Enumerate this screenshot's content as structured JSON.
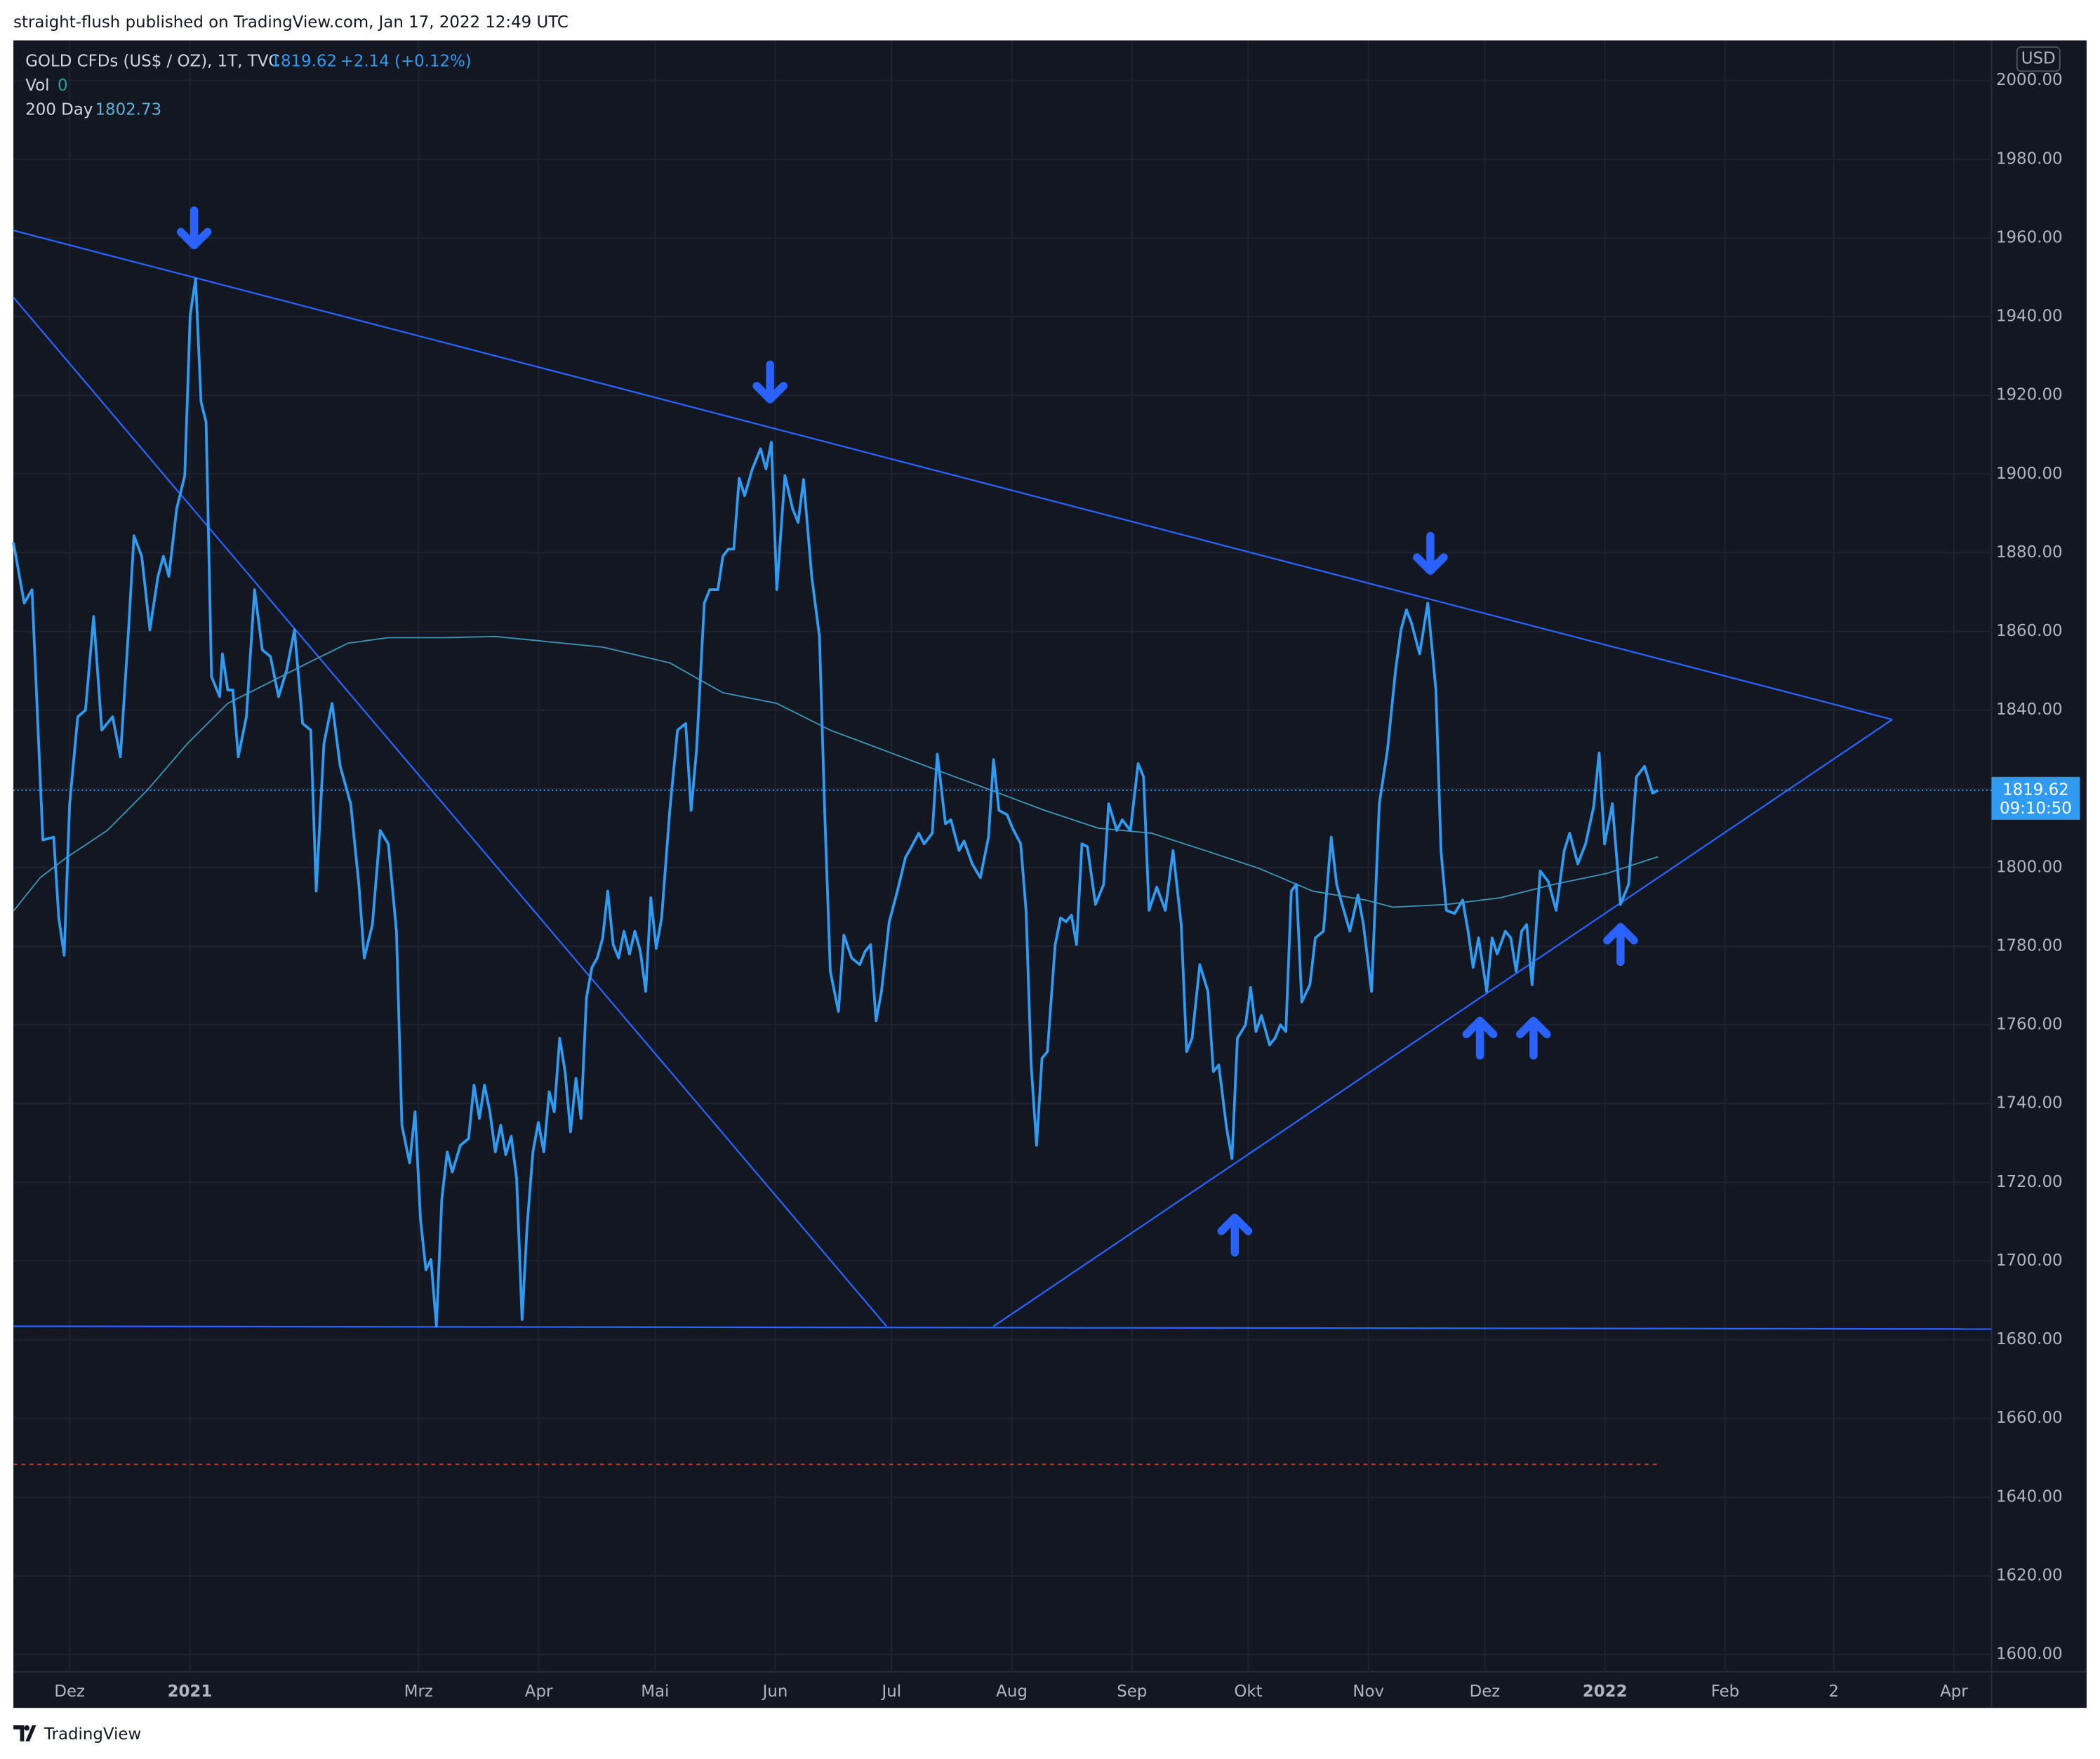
{
  "header": "straight-flush published on TradingView.com, Jan 17, 2022 12:49 UTC",
  "brand": "TradingView",
  "currency": "USD",
  "change": "+2.14 (+0.12%)",
  "volume": {
    "label": "Vol",
    "value": 0
  },
  "price_time": "09:10:50",
  "chart_data": {
    "type": "line",
    "grid": true,
    "xlim": [
      -14.5,
      495.7
    ],
    "ylim": [
      1595.6,
      2010.2
    ],
    "xticks": [
      {
        "value": 0,
        "label": "Dez"
      },
      {
        "value": 31,
        "label": "2021",
        "bold": true
      },
      {
        "value": 90,
        "label": "Mrz"
      },
      {
        "value": 121,
        "label": "Apr"
      },
      {
        "value": 151,
        "label": "Mai"
      },
      {
        "value": 182,
        "label": "Jun"
      },
      {
        "value": 212,
        "label": "Jul"
      },
      {
        "value": 243,
        "label": "Aug"
      },
      {
        "value": 274,
        "label": "Sep"
      },
      {
        "value": 304,
        "label": "Okt"
      },
      {
        "value": 335,
        "label": "Nov"
      },
      {
        "value": 365,
        "label": "Dez"
      },
      {
        "value": 396,
        "label": "2022",
        "bold": true
      },
      {
        "value": 427,
        "label": "Feb"
      },
      {
        "value": 455,
        "label": "2"
      },
      {
        "value": 486,
        "label": "Apr"
      }
    ],
    "yticks": [
      {
        "value": 1600,
        "label": "1600.00"
      },
      {
        "value": 1620,
        "label": "1620.00"
      },
      {
        "value": 1640,
        "label": "1640.00"
      },
      {
        "value": 1660,
        "label": "1660.00"
      },
      {
        "value": 1680,
        "label": "1680.00"
      },
      {
        "value": 1700,
        "label": "1700.00"
      },
      {
        "value": 1720,
        "label": "1720.00"
      },
      {
        "value": 1740,
        "label": "1740.00"
      },
      {
        "value": 1760,
        "label": "1760.00"
      },
      {
        "value": 1780,
        "label": "1780.00"
      },
      {
        "value": 1800,
        "label": "1800.00"
      },
      {
        "value": 1820,
        "label": "1820.00"
      },
      {
        "value": 1840,
        "label": "1840.00"
      },
      {
        "value": 1860,
        "label": "1860.00"
      },
      {
        "value": 1880,
        "label": "1880.00"
      },
      {
        "value": 1900,
        "label": "1900.00"
      },
      {
        "value": 1920,
        "label": "1920.00"
      },
      {
        "value": 1940,
        "label": "1940.00"
      },
      {
        "value": 1960,
        "label": "1960.00"
      },
      {
        "value": 1980,
        "label": "1980.00"
      },
      {
        "value": 2000,
        "label": "2000.00"
      }
    ],
    "series": [
      {
        "name": "GOLD CFDs (US$ / OZ), 1T, TVC",
        "color": "#2f9bf2",
        "width": 2,
        "x": [
          -14.5,
          -11.7,
          -9.7,
          -6.9,
          -4.1,
          -2.8,
          -1.4,
          0,
          2.1,
          4.1,
          6.2,
          8.3,
          11.1,
          13.1,
          15.2,
          16.6,
          18.6,
          20.7,
          22.8,
          24.2,
          25.6,
          27.6,
          29.7,
          31.1,
          32.5,
          33.9,
          35.2,
          36.6,
          38.7,
          39.4,
          40.8,
          42.1,
          43.5,
          45.6,
          47.7,
          49.7,
          51.8,
          53.9,
          56,
          58,
          60.1,
          62.2,
          63.6,
          65.6,
          67.7,
          69.8,
          72.5,
          74.6,
          76,
          78.1,
          80.1,
          82.2,
          84.3,
          85.7,
          87.7,
          89.1,
          90.5,
          91.9,
          93.2,
          94.6,
          96,
          97.4,
          98.7,
          100.8,
          102.9,
          104.3,
          105.7,
          107,
          108.4,
          109.8,
          111.2,
          112.5,
          113.9,
          115.3,
          116.7,
          118,
          119.5,
          120.9,
          122.3,
          123.7,
          125,
          126.4,
          127.8,
          129.2,
          130.6,
          131.9,
          133.3,
          134.7,
          136.1,
          137.5,
          138.8,
          140.2,
          141.6,
          143,
          144.4,
          145.8,
          147.2,
          148.6,
          149.9,
          151.3,
          152.7,
          154.8,
          156.8,
          158.9,
          160.3,
          161.7,
          163.7,
          165.1,
          167.2,
          168.5,
          169.9,
          171.3,
          172.7,
          174.1,
          176.1,
          178.2,
          179.6,
          181,
          182.4,
          184.5,
          186.5,
          187.9,
          189.3,
          191.4,
          193.4,
          194.8,
          196.2,
          198.3,
          199.7,
          201.7,
          203.8,
          205.2,
          206.6,
          208,
          209.4,
          211.4,
          213.5,
          215.6,
          217,
          219,
          220.4,
          222.5,
          223.8,
          225.9,
          227.3,
          229.4,
          230.7,
          232.8,
          234.9,
          237,
          238.3,
          239.7,
          241.8,
          243.2,
          245.3,
          246.7,
          248,
          249.4,
          250.8,
          252.2,
          254.2,
          255.6,
          257,
          258.4,
          259.7,
          261.1,
          262.5,
          264.6,
          266.7,
          268,
          270.1,
          271.5,
          273.6,
          275.6,
          277,
          278.4,
          280.4,
          282.6,
          284.6,
          286.7,
          288.1,
          289.5,
          291.5,
          293.6,
          295,
          296.4,
          298.4,
          299.8,
          301.2,
          303.3,
          304.6,
          306,
          307.4,
          309.5,
          310.9,
          312.3,
          313.7,
          315.1,
          316.4,
          317.8,
          319.9,
          321.3,
          323.4,
          325.4,
          326.8,
          328.2,
          330.2,
          332.3,
          333.7,
          335.8,
          337.8,
          339.9,
          342,
          343.4,
          344.8,
          346.1,
          348.2,
          350.3,
          352.4,
          353.7,
          355.1,
          357.2,
          359.3,
          360.7,
          362,
          363.4,
          365.5,
          366.9,
          368.2,
          370.3,
          371.7,
          373.1,
          374.5,
          375.8,
          377.2,
          379.3,
          381.4,
          383.4,
          385.5,
          386.9,
          389,
          391,
          393.1,
          394.5,
          395.9,
          397.9,
          400,
          402.1,
          404.1,
          406.2,
          408.3,
          409.7
        ],
        "values": [
          1882.6,
          1867.2,
          1870.6,
          1807,
          1807.7,
          1787.2,
          1777.7,
          1816,
          1838.3,
          1840,
          1863.8,
          1834.9,
          1838.3,
          1828.1,
          1860.4,
          1884.3,
          1879.1,
          1860.4,
          1874,
          1879.1,
          1874,
          1891.1,
          1899.6,
          1940.4,
          1949.6,
          1918.3,
          1913.2,
          1848.5,
          1843.4,
          1854.3,
          1845.1,
          1845.1,
          1828.1,
          1838.3,
          1870.6,
          1855.3,
          1853.6,
          1843.4,
          1850.2,
          1860.4,
          1836.6,
          1834.9,
          1794,
          1831.5,
          1841.7,
          1825.7,
          1816.2,
          1795.7,
          1777,
          1785.5,
          1809.4,
          1806,
          1783.8,
          1734.5,
          1724.9,
          1737.9,
          1710.6,
          1697.7,
          1700.4,
          1683.4,
          1715.7,
          1727.7,
          1722.6,
          1729.4,
          1731.1,
          1744.7,
          1736.2,
          1744.7,
          1737.9,
          1727.7,
          1734.5,
          1727,
          1731.7,
          1720.9,
          1685.1,
          1708.9,
          1727.7,
          1735.2,
          1727.7,
          1743,
          1737.9,
          1756.6,
          1748.1,
          1732.8,
          1746.4,
          1736.2,
          1766.8,
          1774.6,
          1777,
          1782.1,
          1794,
          1780.4,
          1777,
          1783.8,
          1778,
          1783.8,
          1778.7,
          1768.5,
          1792.3,
          1779.4,
          1787.2,
          1814.5,
          1834.9,
          1836.6,
          1814.5,
          1829.8,
          1867.2,
          1870.6,
          1870.6,
          1879.1,
          1880.9,
          1880.9,
          1898.9,
          1894.5,
          1901.3,
          1906.4,
          1901.3,
          1908.1,
          1870.6,
          1899.6,
          1891.1,
          1887.7,
          1898.6,
          1874,
          1858.7,
          1812.8,
          1773.6,
          1763.4,
          1782.8,
          1777,
          1775.3,
          1778.7,
          1780.4,
          1761,
          1768.5,
          1786.2,
          1794,
          1802.6,
          1805,
          1808.7,
          1806,
          1808.7,
          1828.8,
          1811.1,
          1812.1,
          1804.3,
          1806.7,
          1800.9,
          1797.4,
          1807.7,
          1827.4,
          1814.5,
          1813.4,
          1810,
          1806,
          1788.9,
          1749.8,
          1729.4,
          1751.5,
          1753.2,
          1780.4,
          1787.2,
          1786.2,
          1787.9,
          1780.4,
          1806,
          1805.3,
          1790.6,
          1795.7,
          1816.2,
          1809.4,
          1812.1,
          1809.4,
          1826.4,
          1823,
          1789.1,
          1795,
          1789.1,
          1804.3,
          1785.5,
          1753.2,
          1756.6,
          1775.3,
          1768.5,
          1748.1,
          1749.8,
          1733.8,
          1726,
          1756.6,
          1760,
          1769.5,
          1758.3,
          1762.4,
          1754.9,
          1756.6,
          1760,
          1758.3,
          1794,
          1795.7,
          1765.8,
          1770.2,
          1782.1,
          1783.8,
          1807.7,
          1795.7,
          1790.6,
          1783.8,
          1793,
          1785.5,
          1768.5,
          1816.2,
          1829.8,
          1850.2,
          1860.4,
          1865.5,
          1862.1,
          1854.3,
          1867.2,
          1845.1,
          1804.3,
          1789.1,
          1788.3,
          1791.7,
          1783.8,
          1774.6,
          1782.1,
          1768.5,
          1782.1,
          1778,
          1783.8,
          1782.1,
          1773.6,
          1783.8,
          1785.5,
          1770.2,
          1799.1,
          1796.4,
          1789.1,
          1804.3,
          1808.7,
          1800.9,
          1806,
          1815.5,
          1829.1,
          1806,
          1816.2,
          1790.6,
          1795.7,
          1823,
          1825.7,
          1818.9,
          1819.62
        ]
      },
      {
        "name": "200 Day",
        "color": "#3d90b0",
        "width": 1,
        "x": [
          -14.5,
          -7.6,
          -0.7,
          9.7,
          20,
          30.4,
          40.8,
          51.1,
          61.5,
          71.8,
          82.2,
          96,
          109.8,
          120.2,
          137.5,
          154.8,
          168.5,
          182.4,
          196.2,
          210,
          223.8,
          237.8,
          251.5,
          265.3,
          279.1,
          292.9,
          306.7,
          320.6,
          334.4,
          341.3,
          355.1,
          369,
          382.8,
          396.5,
          409.7
        ],
        "values": [
          1788.9,
          1797.4,
          1802.6,
          1809.4,
          1819.6,
          1831.5,
          1841.7,
          1846.8,
          1852,
          1857,
          1858.4,
          1858.4,
          1858.7,
          1857.7,
          1856,
          1852,
          1844.4,
          1841.7,
          1834.9,
          1829.8,
          1824.7,
          1819.6,
          1814.5,
          1810,
          1808.7,
          1804.3,
          1799.8,
          1794,
          1791.7,
          1789.9,
          1790.6,
          1792.3,
          1795.7,
          1798.5,
          1802.73
        ]
      }
    ],
    "trend_lines": [
      {
        "color": "#2962ff",
        "x": [
          -14.5,
          470.1
        ],
        "y": [
          1961.9,
          1837.6
        ]
      },
      {
        "color": "#2962ff",
        "x": [
          -14.5,
          210.7
        ],
        "y": [
          1944.9,
          1683.4
        ]
      },
      {
        "color": "#2962ff",
        "x": [
          -14.5,
          495.7
        ],
        "y": [
          1683.4,
          1682.7
        ]
      },
      {
        "color": "#2962ff",
        "x": [
          238.3,
          470.1
        ],
        "y": [
          1683.4,
          1837.6
        ]
      }
    ],
    "reference_line": {
      "value": 1648.3,
      "x": [
        -14.5,
        409.7
      ],
      "color": "#c0392b"
    }
  }
}
